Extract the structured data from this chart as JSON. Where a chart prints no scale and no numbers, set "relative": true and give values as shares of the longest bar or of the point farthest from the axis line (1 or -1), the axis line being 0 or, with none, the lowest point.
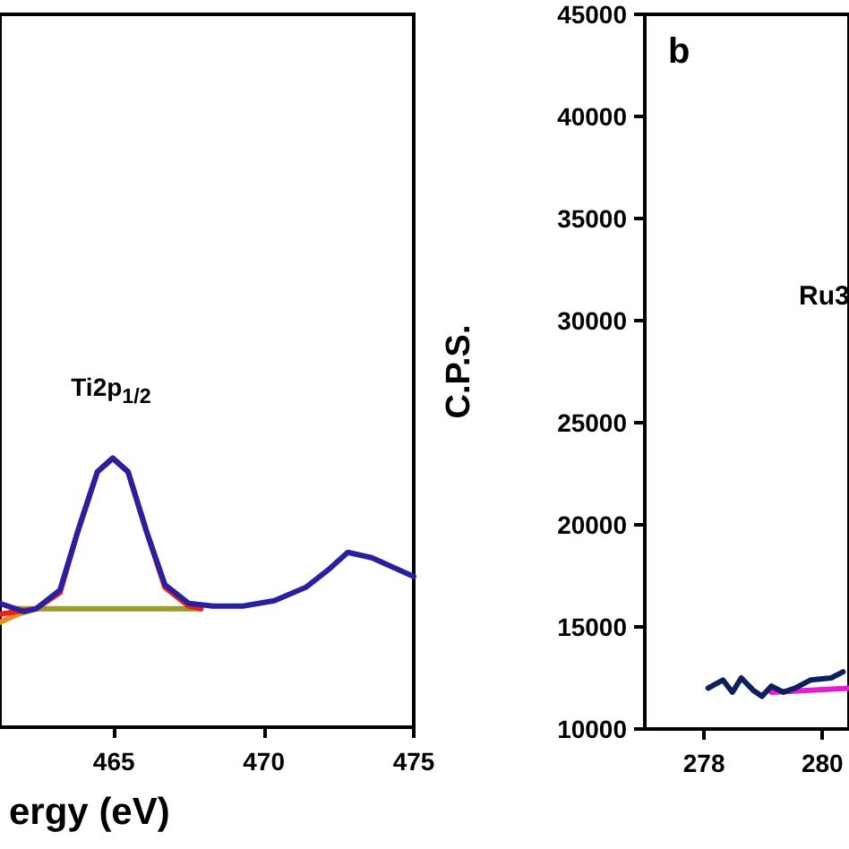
{
  "chart_data": [
    {
      "type": "line",
      "relative": true,
      "xlabel": "ergy (eV)",
      "xlim": [
        461.2,
        475
      ],
      "xticks": [
        465,
        470,
        475
      ],
      "marker": "none",
      "grid": false,
      "annotations": [
        "Ti2p$_{1/2}$"
      ],
      "series": [
        {
          "color": "#9c9c2a",
          "x": [
            461.6,
            467.9
          ],
          "values": [
            0.44,
            0.44
          ]
        },
        {
          "color": "#f08c1e",
          "x": [
            461.2,
            461.8,
            462.4
          ],
          "values": [
            0.39,
            0.42,
            0.44
          ]
        },
        {
          "color": "#e8231f",
          "x": [
            461.2,
            462.4,
            463.2,
            463.8,
            464.45,
            464.96,
            465.47,
            466.08,
            466.7,
            467.5,
            467.9
          ],
          "values": [
            0.42,
            0.44,
            0.5,
            0.73,
            0.95,
            1,
            0.95,
            0.73,
            0.52,
            0.45,
            0.44
          ]
        },
        {
          "color": "#2a1f9e",
          "x": [
            461.2,
            462.0,
            462.4,
            463.2,
            463.8,
            464.45,
            464.96,
            465.47,
            466.08,
            466.7,
            467.5,
            468.3,
            469.3,
            470.35,
            471.4,
            472.2,
            472.8,
            473.6,
            474.4,
            475
          ],
          "values": [
            0.46,
            0.43,
            0.44,
            0.51,
            0.73,
            0.95,
            1,
            0.95,
            0.73,
            0.53,
            0.46,
            0.45,
            0.45,
            0.47,
            0.52,
            0.59,
            0.65,
            0.63,
            0.59,
            0.56
          ]
        }
      ]
    },
    {
      "type": "line",
      "ylabel": "C.P.S.",
      "xlim": [
        277,
        280.45
      ],
      "xticks": [
        278,
        280
      ],
      "ylim": [
        10000,
        45000
      ],
      "yticks": [
        10000,
        15000,
        20000,
        25000,
        30000,
        35000,
        40000,
        45000
      ],
      "marker": "none",
      "grid": false,
      "annotations": [
        "b",
        "Ru3"
      ],
      "series": [
        {
          "color": "#e020d0",
          "x": [
            279.14,
            280.45
          ],
          "values": [
            11800,
            12000
          ]
        },
        {
          "color": "#0d1f5c",
          "x": [
            278.07,
            278.32,
            278.48,
            278.63,
            278.83,
            278.98,
            279.14,
            279.34,
            279.54,
            279.8,
            280.15,
            280.35
          ],
          "values": [
            12000,
            12400,
            11800,
            12500,
            11900,
            11600,
            12100,
            11800,
            12000,
            12400,
            12500,
            12800
          ]
        }
      ]
    }
  ]
}
